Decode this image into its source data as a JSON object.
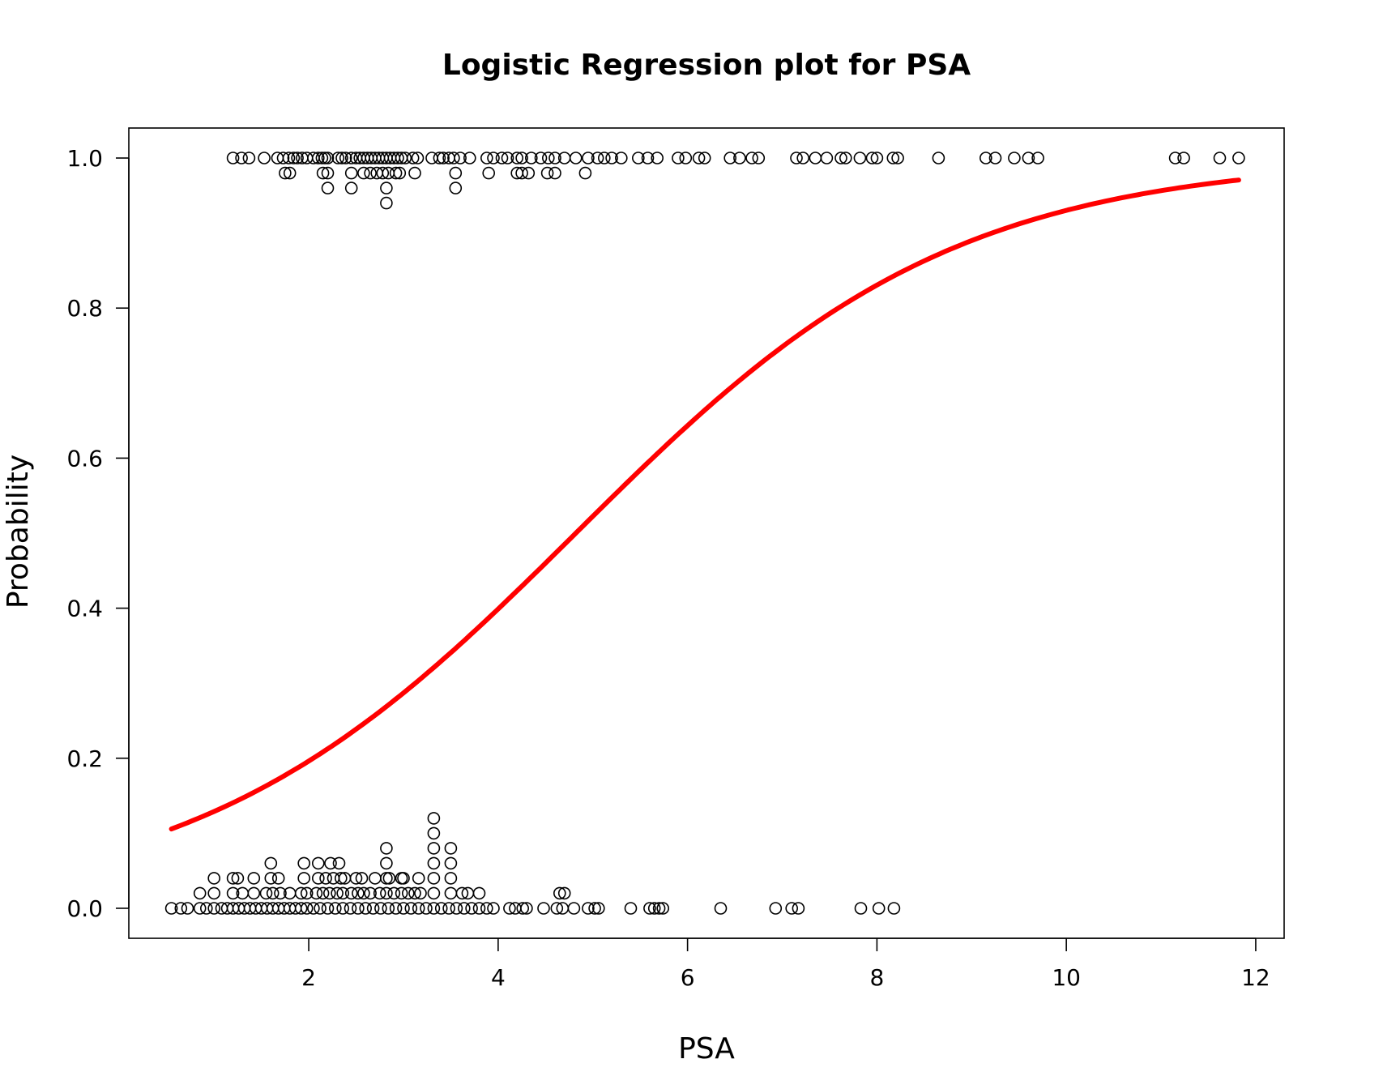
{
  "chart_data": {
    "type": "scatter",
    "title": "Logistic Regression plot for PSA",
    "xlabel": "PSA",
    "ylabel": "Probability",
    "xlim": [
      0.1,
      12.3
    ],
    "ylim": [
      -0.04,
      1.04
    ],
    "x_ticks": [
      2,
      4,
      6,
      8,
      10,
      12
    ],
    "x_tick_labels": [
      "2",
      "4",
      "6",
      "8",
      "10",
      "12"
    ],
    "y_ticks": [
      0.0,
      0.2,
      0.4,
      0.6,
      0.8,
      1.0
    ],
    "y_tick_labels": [
      "0.0",
      "0.2",
      "0.4",
      "0.6",
      "0.8",
      "1.0"
    ],
    "grid": false,
    "legend": "none",
    "fit_curve": {
      "name": "",
      "color": "#ff0000",
      "model": "logistic",
      "intercept": -2.41,
      "slope": 0.5,
      "x_range": [
        0.55,
        11.82
      ]
    },
    "series": [
      {
        "name": "",
        "marker": "open-circle",
        "color": "#000000",
        "points": [
          [
            1.2,
            1
          ],
          [
            1.29,
            1
          ],
          [
            1.37,
            1
          ],
          [
            1.53,
            1
          ],
          [
            1.67,
            1
          ],
          [
            1.73,
            1
          ],
          [
            1.79,
            1
          ],
          [
            1.84,
            1
          ],
          [
            1.88,
            1
          ],
          [
            1.93,
            1
          ],
          [
            1.98,
            1
          ],
          [
            2.05,
            1
          ],
          [
            2.1,
            1
          ],
          [
            2.14,
            1
          ],
          [
            2.17,
            1
          ],
          [
            2.2,
            1
          ],
          [
            2.31,
            1
          ],
          [
            2.35,
            1
          ],
          [
            2.39,
            1
          ],
          [
            2.45,
            1
          ],
          [
            2.5,
            1
          ],
          [
            2.54,
            1
          ],
          [
            2.58,
            1
          ],
          [
            2.62,
            1
          ],
          [
            2.66,
            1
          ],
          [
            2.7,
            1
          ],
          [
            2.74,
            1
          ],
          [
            2.78,
            1
          ],
          [
            2.82,
            1
          ],
          [
            2.86,
            1
          ],
          [
            2.9,
            1
          ],
          [
            2.94,
            1
          ],
          [
            2.98,
            1
          ],
          [
            3.02,
            1
          ],
          [
            3.1,
            1
          ],
          [
            3.15,
            1
          ],
          [
            3.3,
            1
          ],
          [
            3.38,
            1
          ],
          [
            3.42,
            1
          ],
          [
            3.48,
            1
          ],
          [
            3.53,
            1
          ],
          [
            3.6,
            1
          ],
          [
            3.7,
            1
          ],
          [
            3.88,
            1
          ],
          [
            3.95,
            1
          ],
          [
            4.04,
            1
          ],
          [
            4.1,
            1
          ],
          [
            4.2,
            1
          ],
          [
            4.25,
            1
          ],
          [
            4.35,
            1
          ],
          [
            4.45,
            1
          ],
          [
            4.53,
            1
          ],
          [
            4.6,
            1
          ],
          [
            4.7,
            1
          ],
          [
            4.82,
            1
          ],
          [
            4.95,
            1
          ],
          [
            5.05,
            1
          ],
          [
            5.12,
            1
          ],
          [
            5.2,
            1
          ],
          [
            5.3,
            1
          ],
          [
            5.48,
            1
          ],
          [
            5.58,
            1
          ],
          [
            5.68,
            1
          ],
          [
            5.9,
            1
          ],
          [
            5.98,
            1
          ],
          [
            6.12,
            1
          ],
          [
            6.18,
            1
          ],
          [
            6.45,
            1
          ],
          [
            6.55,
            1
          ],
          [
            6.68,
            1
          ],
          [
            6.75,
            1
          ],
          [
            7.15,
            1
          ],
          [
            7.22,
            1
          ],
          [
            7.35,
            1
          ],
          [
            7.47,
            1
          ],
          [
            7.62,
            1
          ],
          [
            7.67,
            1
          ],
          [
            7.82,
            1
          ],
          [
            7.95,
            1
          ],
          [
            8.0,
            1
          ],
          [
            8.17,
            1
          ],
          [
            8.22,
            1
          ],
          [
            8.65,
            1
          ],
          [
            9.15,
            1
          ],
          [
            9.25,
            1
          ],
          [
            9.45,
            1
          ],
          [
            9.6,
            1
          ],
          [
            9.7,
            1
          ],
          [
            11.15,
            1
          ],
          [
            11.24,
            1
          ],
          [
            11.62,
            1
          ],
          [
            11.82,
            1
          ],
          [
            1.75,
            0.98
          ],
          [
            1.8,
            0.98
          ],
          [
            2.15,
            0.98
          ],
          [
            2.2,
            0.98
          ],
          [
            2.45,
            0.98
          ],
          [
            2.58,
            0.98
          ],
          [
            2.65,
            0.98
          ],
          [
            2.72,
            0.98
          ],
          [
            2.78,
            0.98
          ],
          [
            2.84,
            0.98
          ],
          [
            2.92,
            0.98
          ],
          [
            2.96,
            0.98
          ],
          [
            3.12,
            0.98
          ],
          [
            3.55,
            0.98
          ],
          [
            3.9,
            0.98
          ],
          [
            4.2,
            0.98
          ],
          [
            4.25,
            0.98
          ],
          [
            4.32,
            0.98
          ],
          [
            4.52,
            0.98
          ],
          [
            4.6,
            0.98
          ],
          [
            4.92,
            0.98
          ],
          [
            2.2,
            0.96
          ],
          [
            2.45,
            0.96
          ],
          [
            2.82,
            0.96
          ],
          [
            3.55,
            0.96
          ],
          [
            2.82,
            0.94
          ],
          [
            0.55,
            0
          ],
          [
            0.65,
            0
          ],
          [
            0.72,
            0
          ],
          [
            0.85,
            0
          ],
          [
            0.92,
            0
          ],
          [
            1.0,
            0
          ],
          [
            1.08,
            0
          ],
          [
            1.14,
            0
          ],
          [
            1.2,
            0
          ],
          [
            1.26,
            0
          ],
          [
            1.32,
            0
          ],
          [
            1.38,
            0
          ],
          [
            1.44,
            0
          ],
          [
            1.5,
            0
          ],
          [
            1.56,
            0
          ],
          [
            1.62,
            0
          ],
          [
            1.68,
            0
          ],
          [
            1.74,
            0
          ],
          [
            1.8,
            0
          ],
          [
            1.86,
            0
          ],
          [
            1.92,
            0
          ],
          [
            1.98,
            0
          ],
          [
            2.05,
            0
          ],
          [
            2.12,
            0
          ],
          [
            2.2,
            0
          ],
          [
            2.28,
            0
          ],
          [
            2.36,
            0
          ],
          [
            2.44,
            0
          ],
          [
            2.52,
            0
          ],
          [
            2.6,
            0
          ],
          [
            2.68,
            0
          ],
          [
            2.76,
            0
          ],
          [
            2.84,
            0
          ],
          [
            2.92,
            0
          ],
          [
            3.0,
            0
          ],
          [
            3.08,
            0
          ],
          [
            3.16,
            0
          ],
          [
            3.24,
            0
          ],
          [
            3.32,
            0
          ],
          [
            3.4,
            0
          ],
          [
            3.48,
            0
          ],
          [
            3.56,
            0
          ],
          [
            3.64,
            0
          ],
          [
            3.72,
            0
          ],
          [
            3.8,
            0
          ],
          [
            3.88,
            0
          ],
          [
            3.95,
            0
          ],
          [
            4.12,
            0
          ],
          [
            4.18,
            0
          ],
          [
            4.26,
            0
          ],
          [
            4.3,
            0
          ],
          [
            4.48,
            0
          ],
          [
            4.62,
            0
          ],
          [
            4.68,
            0
          ],
          [
            4.8,
            0
          ],
          [
            4.95,
            0
          ],
          [
            5.02,
            0
          ],
          [
            5.06,
            0
          ],
          [
            5.4,
            0
          ],
          [
            5.6,
            0
          ],
          [
            5.65,
            0
          ],
          [
            5.7,
            0
          ],
          [
            5.74,
            0
          ],
          [
            6.35,
            0
          ],
          [
            6.93,
            0
          ],
          [
            7.1,
            0
          ],
          [
            7.17,
            0
          ],
          [
            7.83,
            0
          ],
          [
            8.02,
            0
          ],
          [
            8.18,
            0
          ],
          [
            0.85,
            0.02
          ],
          [
            1.0,
            0.02
          ],
          [
            1.2,
            0.02
          ],
          [
            1.3,
            0.02
          ],
          [
            1.42,
            0.02
          ],
          [
            1.55,
            0.02
          ],
          [
            1.62,
            0.02
          ],
          [
            1.7,
            0.02
          ],
          [
            1.8,
            0.02
          ],
          [
            1.92,
            0.02
          ],
          [
            1.98,
            0.02
          ],
          [
            2.08,
            0.02
          ],
          [
            2.15,
            0.02
          ],
          [
            2.22,
            0.02
          ],
          [
            2.3,
            0.02
          ],
          [
            2.36,
            0.02
          ],
          [
            2.45,
            0.02
          ],
          [
            2.52,
            0.02
          ],
          [
            2.58,
            0.02
          ],
          [
            2.65,
            0.02
          ],
          [
            2.75,
            0.02
          ],
          [
            2.82,
            0.02
          ],
          [
            2.9,
            0.02
          ],
          [
            2.98,
            0.02
          ],
          [
            3.05,
            0.02
          ],
          [
            3.12,
            0.02
          ],
          [
            3.18,
            0.02
          ],
          [
            3.32,
            0.02
          ],
          [
            3.5,
            0.02
          ],
          [
            3.62,
            0.02
          ],
          [
            3.68,
            0.02
          ],
          [
            3.8,
            0.02
          ],
          [
            4.65,
            0.02
          ],
          [
            4.7,
            0.02
          ],
          [
            1.0,
            0.04
          ],
          [
            1.2,
            0.04
          ],
          [
            1.25,
            0.04
          ],
          [
            1.42,
            0.04
          ],
          [
            1.6,
            0.04
          ],
          [
            1.68,
            0.04
          ],
          [
            1.95,
            0.04
          ],
          [
            2.1,
            0.04
          ],
          [
            2.18,
            0.04
          ],
          [
            2.26,
            0.04
          ],
          [
            2.34,
            0.04
          ],
          [
            2.38,
            0.04
          ],
          [
            2.5,
            0.04
          ],
          [
            2.56,
            0.04
          ],
          [
            2.7,
            0.04
          ],
          [
            2.82,
            0.04
          ],
          [
            2.85,
            0.04
          ],
          [
            2.98,
            0.04
          ],
          [
            3.0,
            0.04
          ],
          [
            3.16,
            0.04
          ],
          [
            3.32,
            0.04
          ],
          [
            3.5,
            0.04
          ],
          [
            1.6,
            0.06
          ],
          [
            1.95,
            0.06
          ],
          [
            2.1,
            0.06
          ],
          [
            2.23,
            0.06
          ],
          [
            2.32,
            0.06
          ],
          [
            2.82,
            0.06
          ],
          [
            3.32,
            0.06
          ],
          [
            3.5,
            0.06
          ],
          [
            2.82,
            0.08
          ],
          [
            3.32,
            0.08
          ],
          [
            3.5,
            0.08
          ],
          [
            3.32,
            0.1
          ],
          [
            3.32,
            0.12
          ]
        ]
      }
    ]
  }
}
